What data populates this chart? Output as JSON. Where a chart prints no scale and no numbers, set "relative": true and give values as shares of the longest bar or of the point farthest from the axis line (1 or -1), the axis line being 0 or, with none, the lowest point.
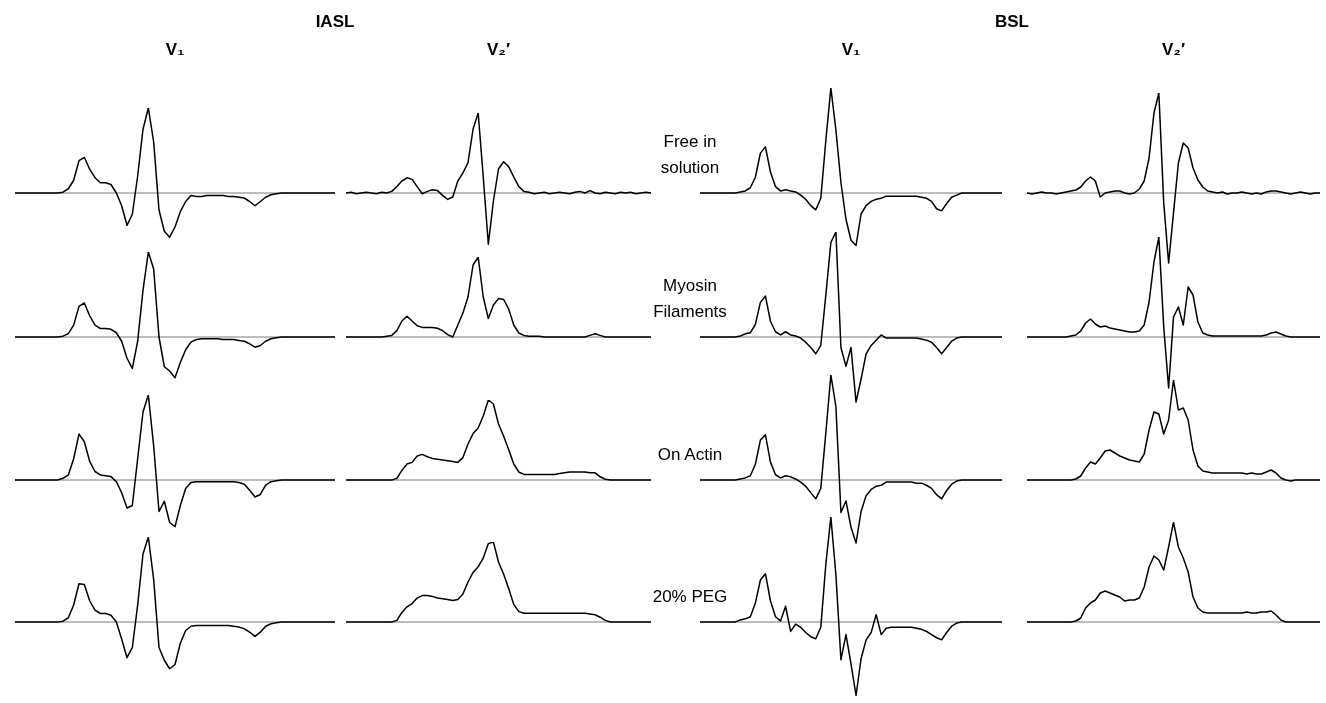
{
  "chart_data": [
    {
      "type": "line",
      "relative": true,
      "title": "IASL",
      "subtitle": "V₁",
      "color": "#000000",
      "categories": [
        null,
        null,
        null,
        null,
        null,
        null,
        null,
        null,
        null,
        null,
        null,
        null,
        null,
        null,
        null,
        null,
        null,
        null,
        null,
        null,
        null,
        null,
        null,
        null,
        null,
        null,
        null,
        null,
        null,
        null,
        null,
        null,
        null,
        null,
        null,
        null,
        null,
        null,
        null,
        null,
        null,
        null,
        null,
        null,
        null,
        null,
        null,
        null,
        null,
        null,
        null,
        null,
        null,
        null,
        null,
        null,
        null,
        null,
        null,
        null,
        null
      ],
      "values": [
        0,
        0,
        0,
        0,
        0,
        0,
        0,
        0,
        0,
        0.01,
        0.05,
        0.15,
        0.38,
        0.42,
        0.28,
        0.18,
        0.12,
        0.12,
        0.1,
        0,
        -0.15,
        -0.38,
        -0.25,
        0.2,
        0.75,
        1,
        0.6,
        -0.2,
        -0.45,
        -0.52,
        -0.4,
        -0.22,
        -0.1,
        -0.03,
        -0.04,
        -0.04,
        -0.03,
        -0.03,
        -0.03,
        -0.03,
        -0.04,
        -0.04,
        -0.05,
        -0.06,
        -0.1,
        -0.15,
        -0.1,
        -0.05,
        -0.02,
        -0.01,
        0,
        0,
        0,
        0,
        0,
        0,
        0,
        0,
        0,
        0,
        0
      ]
    },
    {
      "type": "line",
      "relative": true,
      "subtitle": "V₂′",
      "color": "#000000",
      "categories": [
        null,
        null,
        null,
        null,
        null,
        null,
        null,
        null,
        null,
        null,
        null,
        null,
        null,
        null,
        null,
        null,
        null,
        null,
        null,
        null,
        null,
        null,
        null,
        null,
        null,
        null,
        null,
        null,
        null,
        null,
        null,
        null,
        null,
        null,
        null,
        null,
        null,
        null,
        null,
        null,
        null,
        null,
        null,
        null,
        null,
        null,
        null,
        null,
        null,
        null,
        null,
        null,
        null,
        null,
        null,
        null,
        null,
        null,
        null,
        null,
        null
      ],
      "values": [
        0,
        0.01,
        -0.01,
        0,
        0.01,
        0,
        -0.01,
        0.01,
        0,
        0.02,
        0.08,
        0.15,
        0.19,
        0.17,
        0.08,
        -0.01,
        0.02,
        0.04,
        0.03,
        -0.03,
        -0.08,
        -0.05,
        0.15,
        0.25,
        0.38,
        0.8,
        1,
        0.2,
        -0.64,
        -0.1,
        0.3,
        0.39,
        0.33,
        0.2,
        0.08,
        0.02,
        0.01,
        -0.01,
        0,
        0.01,
        -0.01,
        0,
        0.01,
        0,
        -0.01,
        0.01,
        0.02,
        0,
        0.03,
        0,
        -0.01,
        0.01,
        0,
        -0.01,
        0.01,
        0,
        0.01,
        -0.01,
        0,
        0.01,
        0
      ]
    },
    {
      "type": "line",
      "relative": true,
      "title": "BSL",
      "subtitle": "V₁",
      "annotations": [
        "Free in solution"
      ],
      "color": "#000000",
      "categories": [
        null,
        null,
        null,
        null,
        null,
        null,
        null,
        null,
        null,
        null,
        null,
        null,
        null,
        null,
        null,
        null,
        null,
        null,
        null,
        null,
        null,
        null,
        null,
        null,
        null,
        null,
        null,
        null,
        null,
        null,
        null,
        null,
        null,
        null,
        null,
        null,
        null,
        null,
        null,
        null,
        null,
        null,
        null,
        null,
        null,
        null,
        null,
        null,
        null,
        null,
        null,
        null,
        null,
        null,
        null,
        null,
        null,
        null,
        null,
        null,
        null
      ],
      "values": [
        0,
        0,
        0,
        0,
        0,
        0,
        0,
        0,
        0.01,
        0.02,
        0.05,
        0.15,
        0.38,
        0.44,
        0.2,
        0.06,
        0.02,
        0.03,
        0.02,
        0.01,
        -0.02,
        -0.06,
        -0.12,
        -0.16,
        -0.05,
        0.5,
        1,
        0.6,
        0.1,
        -0.25,
        -0.45,
        -0.5,
        -0.2,
        -0.12,
        -0.08,
        -0.06,
        -0.05,
        -0.03,
        -0.03,
        -0.03,
        -0.03,
        -0.03,
        -0.03,
        -0.03,
        -0.04,
        -0.05,
        -0.08,
        -0.15,
        -0.17,
        -0.1,
        -0.04,
        -0.02,
        0,
        0,
        0,
        0,
        0,
        0,
        0,
        0,
        0
      ]
    },
    {
      "type": "line",
      "relative": true,
      "subtitle": "V₂′",
      "color": "#000000",
      "categories": [
        null,
        null,
        null,
        null,
        null,
        null,
        null,
        null,
        null,
        null,
        null,
        null,
        null,
        null,
        null,
        null,
        null,
        null,
        null,
        null,
        null,
        null,
        null,
        null,
        null,
        null,
        null,
        null,
        null,
        null,
        null,
        null,
        null,
        null,
        null,
        null,
        null,
        null,
        null,
        null,
        null,
        null,
        null,
        null,
        null,
        null,
        null,
        null,
        null,
        null,
        null,
        null,
        null,
        null,
        null,
        null,
        null,
        null,
        null,
        null,
        null
      ],
      "values": [
        0,
        -0.01,
        0,
        0.01,
        0,
        0,
        -0.01,
        0,
        0.01,
        0.02,
        0.03,
        0.06,
        0.12,
        0.16,
        0.12,
        -0.04,
        0,
        0.01,
        0.02,
        0.02,
        0,
        -0.01,
        0,
        0.04,
        0.12,
        0.35,
        0.8,
        1,
        -0.1,
        -0.7,
        -0.2,
        0.3,
        0.5,
        0.45,
        0.25,
        0.13,
        0.06,
        0.02,
        0.01,
        0,
        0.01,
        -0.01,
        0,
        0,
        0.01,
        0,
        -0.01,
        0,
        -0.01,
        0.01,
        0.02,
        0.02,
        0.01,
        0,
        -0.01,
        0,
        0.01,
        0,
        -0.01,
        0,
        0
      ]
    },
    {
      "type": "line",
      "relative": true,
      "color": "#000000",
      "categories": [
        null,
        null,
        null,
        null,
        null,
        null,
        null,
        null,
        null,
        null,
        null,
        null,
        null,
        null,
        null,
        null,
        null,
        null,
        null,
        null,
        null,
        null,
        null,
        null,
        null,
        null,
        null,
        null,
        null,
        null,
        null,
        null,
        null,
        null,
        null,
        null,
        null,
        null,
        null,
        null,
        null,
        null,
        null,
        null,
        null,
        null,
        null,
        null,
        null,
        null,
        null,
        null,
        null,
        null,
        null,
        null,
        null,
        null,
        null,
        null,
        null
      ],
      "values": [
        0,
        0,
        0,
        0,
        0,
        0,
        0,
        0,
        0,
        0.01,
        0.04,
        0.14,
        0.36,
        0.4,
        0.25,
        0.14,
        0.1,
        0.1,
        0.09,
        0.05,
        -0.05,
        -0.25,
        -0.37,
        -0.05,
        0.55,
        1,
        0.8,
        0,
        -0.35,
        -0.4,
        -0.48,
        -0.3,
        -0.15,
        -0.06,
        -0.03,
        -0.02,
        -0.02,
        -0.02,
        -0.02,
        -0.03,
        -0.03,
        -0.03,
        -0.04,
        -0.05,
        -0.08,
        -0.12,
        -0.1,
        -0.05,
        -0.02,
        -0.01,
        0,
        0,
        0,
        0,
        0,
        0,
        0,
        0,
        0,
        0,
        0
      ]
    },
    {
      "type": "line",
      "relative": true,
      "color": "#000000",
      "categories": [
        null,
        null,
        null,
        null,
        null,
        null,
        null,
        null,
        null,
        null,
        null,
        null,
        null,
        null,
        null,
        null,
        null,
        null,
        null,
        null,
        null,
        null,
        null,
        null,
        null,
        null,
        null,
        null,
        null,
        null,
        null,
        null,
        null,
        null,
        null,
        null,
        null,
        null,
        null,
        null,
        null,
        null,
        null,
        null,
        null,
        null,
        null,
        null,
        null,
        null,
        null,
        null,
        null,
        null,
        null,
        null,
        null,
        null,
        null,
        null,
        null
      ],
      "values": [
        0,
        0,
        0,
        0,
        0,
        0,
        0,
        0,
        0.01,
        0.02,
        0.08,
        0.2,
        0.26,
        0.2,
        0.14,
        0.12,
        0.12,
        0.12,
        0.11,
        0.08,
        0.03,
        0,
        0.15,
        0.3,
        0.5,
        0.9,
        1,
        0.5,
        0.23,
        0.4,
        0.48,
        0.47,
        0.35,
        0.15,
        0.05,
        0.02,
        0.01,
        0.01,
        0.01,
        0,
        0,
        0,
        0,
        0,
        0,
        0,
        0,
        0,
        0.02,
        0.04,
        0.02,
        0,
        0,
        0,
        0,
        0,
        0,
        0,
        0,
        0,
        0
      ]
    },
    {
      "type": "line",
      "relative": true,
      "annotations": [
        "Myosin Filaments"
      ],
      "color": "#000000",
      "categories": [
        null,
        null,
        null,
        null,
        null,
        null,
        null,
        null,
        null,
        null,
        null,
        null,
        null,
        null,
        null,
        null,
        null,
        null,
        null,
        null,
        null,
        null,
        null,
        null,
        null,
        null,
        null,
        null,
        null,
        null,
        null,
        null,
        null,
        null,
        null,
        null,
        null,
        null,
        null,
        null,
        null,
        null,
        null,
        null,
        null,
        null,
        null,
        null,
        null,
        null,
        null,
        null,
        null,
        null,
        null,
        null,
        null,
        null,
        null,
        null,
        null
      ],
      "values": [
        0,
        0,
        0,
        0,
        0,
        0,
        0,
        0,
        0.01,
        0.03,
        0.04,
        0.12,
        0.33,
        0.39,
        0.15,
        0.05,
        0.02,
        0.05,
        0.02,
        0.01,
        -0.01,
        -0.05,
        -0.1,
        -0.16,
        -0.08,
        0.4,
        0.9,
        1,
        -0.1,
        -0.28,
        -0.1,
        -0.62,
        -0.4,
        -0.16,
        -0.08,
        -0.03,
        0.02,
        -0.01,
        -0.01,
        -0.01,
        -0.01,
        -0.01,
        -0.01,
        -0.01,
        -0.02,
        -0.03,
        -0.05,
        -0.1,
        -0.16,
        -0.1,
        -0.04,
        -0.01,
        0,
        0,
        0,
        0,
        0,
        0,
        0,
        0,
        0
      ]
    },
    {
      "type": "line",
      "relative": true,
      "color": "#000000",
      "categories": [
        null,
        null,
        null,
        null,
        null,
        null,
        null,
        null,
        null,
        null,
        null,
        null,
        null,
        null,
        null,
        null,
        null,
        null,
        null,
        null,
        null,
        null,
        null,
        null,
        null,
        null,
        null,
        null,
        null,
        null,
        null,
        null,
        null,
        null,
        null,
        null,
        null,
        null,
        null,
        null,
        null,
        null,
        null,
        null,
        null,
        null,
        null,
        null,
        null,
        null,
        null,
        null,
        null,
        null,
        null,
        null,
        null,
        null,
        null,
        null,
        null
      ],
      "values": [
        0,
        0,
        0,
        0,
        0,
        0,
        0,
        0,
        0,
        0.01,
        0.02,
        0.06,
        0.14,
        0.18,
        0.13,
        0.1,
        0.11,
        0.09,
        0.08,
        0.07,
        0.06,
        0.05,
        0.05,
        0.06,
        0.12,
        0.35,
        0.75,
        1,
        0.1,
        -0.51,
        0.2,
        0.3,
        0.12,
        0.5,
        0.42,
        0.15,
        0.04,
        0.02,
        0.01,
        0.01,
        0.01,
        0.01,
        0.01,
        0.01,
        0.01,
        0.01,
        0.01,
        0.01,
        0.01,
        0.02,
        0.04,
        0.05,
        0.03,
        0.01,
        0,
        0,
        0,
        0,
        0,
        0,
        0
      ]
    },
    {
      "type": "line",
      "relative": true,
      "color": "#000000",
      "categories": [
        null,
        null,
        null,
        null,
        null,
        null,
        null,
        null,
        null,
        null,
        null,
        null,
        null,
        null,
        null,
        null,
        null,
        null,
        null,
        null,
        null,
        null,
        null,
        null,
        null,
        null,
        null,
        null,
        null,
        null,
        null,
        null,
        null,
        null,
        null,
        null,
        null,
        null,
        null,
        null,
        null,
        null,
        null,
        null,
        null,
        null,
        null,
        null,
        null,
        null,
        null,
        null,
        null,
        null,
        null,
        null,
        null,
        null,
        null,
        null,
        null
      ],
      "values": [
        0,
        0,
        0,
        0,
        0,
        0,
        0,
        0,
        0,
        0.02,
        0.06,
        0.25,
        0.54,
        0.45,
        0.22,
        0.1,
        0.06,
        0.05,
        0.04,
        -0.02,
        -0.15,
        -0.33,
        -0.3,
        0.25,
        0.8,
        1,
        0.4,
        -0.37,
        -0.25,
        -0.5,
        -0.55,
        -0.3,
        -0.1,
        -0.03,
        -0.02,
        -0.02,
        -0.02,
        -0.02,
        -0.02,
        -0.02,
        -0.02,
        -0.02,
        -0.03,
        -0.05,
        -0.12,
        -0.2,
        -0.17,
        -0.06,
        -0.02,
        -0.01,
        0,
        0,
        0,
        0,
        0,
        0,
        0,
        0,
        0,
        0,
        0
      ]
    },
    {
      "type": "line",
      "relative": true,
      "color": "#000000",
      "categories": [
        null,
        null,
        null,
        null,
        null,
        null,
        null,
        null,
        null,
        null,
        null,
        null,
        null,
        null,
        null,
        null,
        null,
        null,
        null,
        null,
        null,
        null,
        null,
        null,
        null,
        null,
        null,
        null,
        null,
        null,
        null,
        null,
        null,
        null,
        null,
        null,
        null,
        null,
        null,
        null,
        null,
        null,
        null,
        null,
        null,
        null,
        null,
        null,
        null,
        null,
        null,
        null,
        null,
        null,
        null,
        null,
        null,
        null,
        null,
        null,
        null
      ],
      "values": [
        0,
        0,
        0,
        0,
        0,
        0,
        0,
        0,
        0,
        0,
        0.02,
        0.12,
        0.2,
        0.22,
        0.3,
        0.32,
        0.29,
        0.27,
        0.26,
        0.25,
        0.24,
        0.23,
        0.22,
        0.28,
        0.45,
        0.58,
        0.65,
        0.8,
        1,
        0.95,
        0.7,
        0.55,
        0.38,
        0.2,
        0.1,
        0.07,
        0.07,
        0.07,
        0.07,
        0.07,
        0.07,
        0.07,
        0.08,
        0.09,
        0.1,
        0.1,
        0.1,
        0.1,
        0.09,
        0.09,
        0.04,
        0.01,
        0,
        0,
        0,
        0,
        0,
        0,
        0,
        0,
        0
      ]
    },
    {
      "type": "line",
      "relative": true,
      "annotations": [
        "On Actin"
      ],
      "color": "#000000",
      "categories": [
        null,
        null,
        null,
        null,
        null,
        null,
        null,
        null,
        null,
        null,
        null,
        null,
        null,
        null,
        null,
        null,
        null,
        null,
        null,
        null,
        null,
        null,
        null,
        null,
        null,
        null,
        null,
        null,
        null,
        null,
        null,
        null,
        null,
        null,
        null,
        null,
        null,
        null,
        null,
        null,
        null,
        null,
        null,
        null,
        null,
        null,
        null,
        null,
        null,
        null,
        null,
        null,
        null,
        null,
        null,
        null,
        null,
        null,
        null,
        null,
        null
      ],
      "values": [
        0,
        0,
        0,
        0,
        0,
        0,
        0,
        0,
        0.01,
        0.02,
        0.04,
        0.15,
        0.38,
        0.43,
        0.17,
        0.05,
        0.02,
        0.04,
        0.03,
        0.01,
        -0.02,
        -0.06,
        -0.12,
        -0.18,
        -0.08,
        0.45,
        1,
        0.7,
        -0.31,
        -0.2,
        -0.45,
        -0.6,
        -0.3,
        -0.15,
        -0.09,
        -0.06,
        -0.05,
        -0.02,
        -0.02,
        -0.02,
        -0.02,
        -0.02,
        -0.02,
        -0.03,
        -0.03,
        -0.05,
        -0.08,
        -0.14,
        -0.18,
        -0.1,
        -0.04,
        -0.01,
        0,
        0,
        0,
        0,
        0,
        0,
        0,
        0,
        0
      ]
    },
    {
      "type": "line",
      "relative": true,
      "color": "#000000",
      "categories": [
        null,
        null,
        null,
        null,
        null,
        null,
        null,
        null,
        null,
        null,
        null,
        null,
        null,
        null,
        null,
        null,
        null,
        null,
        null,
        null,
        null,
        null,
        null,
        null,
        null,
        null,
        null,
        null,
        null,
        null,
        null,
        null,
        null,
        null,
        null,
        null,
        null,
        null,
        null,
        null,
        null,
        null,
        null,
        null,
        null,
        null,
        null,
        null,
        null,
        null,
        null,
        null,
        null,
        null,
        null,
        null,
        null,
        null,
        null,
        null,
        null
      ],
      "values": [
        0,
        0,
        0,
        0,
        0,
        0,
        0,
        0,
        0,
        0,
        0.01,
        0.04,
        0.12,
        0.18,
        0.16,
        0.22,
        0.29,
        0.3,
        0.27,
        0.24,
        0.22,
        0.2,
        0.19,
        0.18,
        0.26,
        0.5,
        0.68,
        0.66,
        0.46,
        0.6,
        1,
        0.7,
        0.72,
        0.6,
        0.3,
        0.14,
        0.09,
        0.08,
        0.07,
        0.07,
        0.07,
        0.07,
        0.07,
        0.07,
        0.07,
        0.06,
        0.07,
        0.06,
        0.06,
        0.08,
        0.1,
        0.07,
        0.02,
        0,
        -0.01,
        0,
        0,
        0,
        0,
        0,
        0
      ]
    },
    {
      "type": "line",
      "relative": true,
      "color": "#000000",
      "categories": [
        null,
        null,
        null,
        null,
        null,
        null,
        null,
        null,
        null,
        null,
        null,
        null,
        null,
        null,
        null,
        null,
        null,
        null,
        null,
        null,
        null,
        null,
        null,
        null,
        null,
        null,
        null,
        null,
        null,
        null,
        null,
        null,
        null,
        null,
        null,
        null,
        null,
        null,
        null,
        null,
        null,
        null,
        null,
        null,
        null,
        null,
        null,
        null,
        null,
        null,
        null,
        null,
        null,
        null,
        null,
        null,
        null,
        null,
        null,
        null,
        null
      ],
      "values": [
        0,
        0,
        0,
        0,
        0,
        0,
        0,
        0,
        0,
        0.01,
        0.05,
        0.2,
        0.45,
        0.44,
        0.25,
        0.14,
        0.1,
        0.1,
        0.08,
        0,
        -0.2,
        -0.42,
        -0.3,
        0.2,
        0.8,
        1,
        0.5,
        -0.3,
        -0.45,
        -0.55,
        -0.5,
        -0.25,
        -0.1,
        -0.05,
        -0.04,
        -0.04,
        -0.04,
        -0.04,
        -0.04,
        -0.04,
        -0.04,
        -0.05,
        -0.06,
        -0.08,
        -0.12,
        -0.17,
        -0.12,
        -0.05,
        -0.02,
        -0.01,
        0,
        0,
        0,
        0,
        0,
        0,
        0,
        0,
        0,
        0,
        0
      ]
    },
    {
      "type": "line",
      "relative": true,
      "color": "#000000",
      "categories": [
        null,
        null,
        null,
        null,
        null,
        null,
        null,
        null,
        null,
        null,
        null,
        null,
        null,
        null,
        null,
        null,
        null,
        null,
        null,
        null,
        null,
        null,
        null,
        null,
        null,
        null,
        null,
        null,
        null,
        null,
        null,
        null,
        null,
        null,
        null,
        null,
        null,
        null,
        null,
        null,
        null,
        null,
        null,
        null,
        null,
        null,
        null,
        null,
        null,
        null,
        null,
        null,
        null,
        null,
        null,
        null,
        null,
        null,
        null,
        null,
        null
      ],
      "values": [
        0,
        0,
        0,
        0,
        0,
        0,
        0,
        0,
        0,
        0,
        0.02,
        0.12,
        0.19,
        0.23,
        0.3,
        0.33,
        0.33,
        0.32,
        0.3,
        0.29,
        0.28,
        0.27,
        0.28,
        0.35,
        0.5,
        0.62,
        0.69,
        0.8,
        0.98,
        1,
        0.75,
        0.6,
        0.42,
        0.22,
        0.13,
        0.11,
        0.11,
        0.11,
        0.11,
        0.11,
        0.11,
        0.11,
        0.11,
        0.11,
        0.11,
        0.11,
        0.11,
        0.11,
        0.1,
        0.09,
        0.06,
        0.02,
        0,
        0,
        0,
        0,
        0,
        0,
        0,
        0,
        0
      ]
    },
    {
      "type": "line",
      "relative": true,
      "annotations": [
        "20% PEG"
      ],
      "color": "#000000",
      "categories": [
        null,
        null,
        null,
        null,
        null,
        null,
        null,
        null,
        null,
        null,
        null,
        null,
        null,
        null,
        null,
        null,
        null,
        null,
        null,
        null,
        null,
        null,
        null,
        null,
        null,
        null,
        null,
        null,
        null,
        null,
        null,
        null,
        null,
        null,
        null,
        null,
        null,
        null,
        null,
        null,
        null,
        null,
        null,
        null,
        null,
        null,
        null,
        null,
        null,
        null,
        null,
        null,
        null,
        null,
        null,
        null,
        null,
        null,
        null,
        null,
        null
      ],
      "values": [
        0,
        0,
        0,
        0,
        0,
        0,
        0,
        0,
        0.02,
        0.03,
        0.05,
        0.18,
        0.4,
        0.46,
        0.2,
        0.05,
        0.01,
        0.15,
        -0.09,
        -0.02,
        -0.05,
        -0.1,
        -0.14,
        -0.16,
        -0.05,
        0.55,
        1,
        0.45,
        -0.36,
        -0.12,
        -0.4,
        -0.7,
        -0.35,
        -0.17,
        -0.1,
        0.07,
        -0.12,
        -0.06,
        -0.05,
        -0.05,
        -0.05,
        -0.05,
        -0.05,
        -0.06,
        -0.07,
        -0.09,
        -0.12,
        -0.15,
        -0.17,
        -0.1,
        -0.04,
        -0.01,
        0,
        0,
        0,
        0,
        0,
        0,
        0,
        0,
        0
      ]
    },
    {
      "type": "line",
      "relative": true,
      "color": "#000000",
      "categories": [
        null,
        null,
        null,
        null,
        null,
        null,
        null,
        null,
        null,
        null,
        null,
        null,
        null,
        null,
        null,
        null,
        null,
        null,
        null,
        null,
        null,
        null,
        null,
        null,
        null,
        null,
        null,
        null,
        null,
        null,
        null,
        null,
        null,
        null,
        null,
        null,
        null,
        null,
        null,
        null,
        null,
        null,
        null,
        null,
        null,
        null,
        null,
        null,
        null,
        null,
        null,
        null,
        null,
        null,
        null,
        null,
        null,
        null,
        null,
        null,
        null
      ],
      "values": [
        0,
        0,
        0,
        0,
        0,
        0,
        0,
        0,
        0,
        0,
        0.01,
        0.04,
        0.14,
        0.19,
        0.22,
        0.29,
        0.31,
        0.29,
        0.27,
        0.25,
        0.21,
        0.22,
        0.22,
        0.24,
        0.35,
        0.55,
        0.66,
        0.62,
        0.52,
        0.75,
        1,
        0.75,
        0.64,
        0.5,
        0.25,
        0.14,
        0.1,
        0.09,
        0.09,
        0.09,
        0.09,
        0.09,
        0.09,
        0.09,
        0.09,
        0.1,
        0.09,
        0.09,
        0.1,
        0.1,
        0.11,
        0.07,
        0.02,
        0,
        0,
        0,
        0,
        0,
        0,
        0,
        0
      ]
    }
  ]
}
